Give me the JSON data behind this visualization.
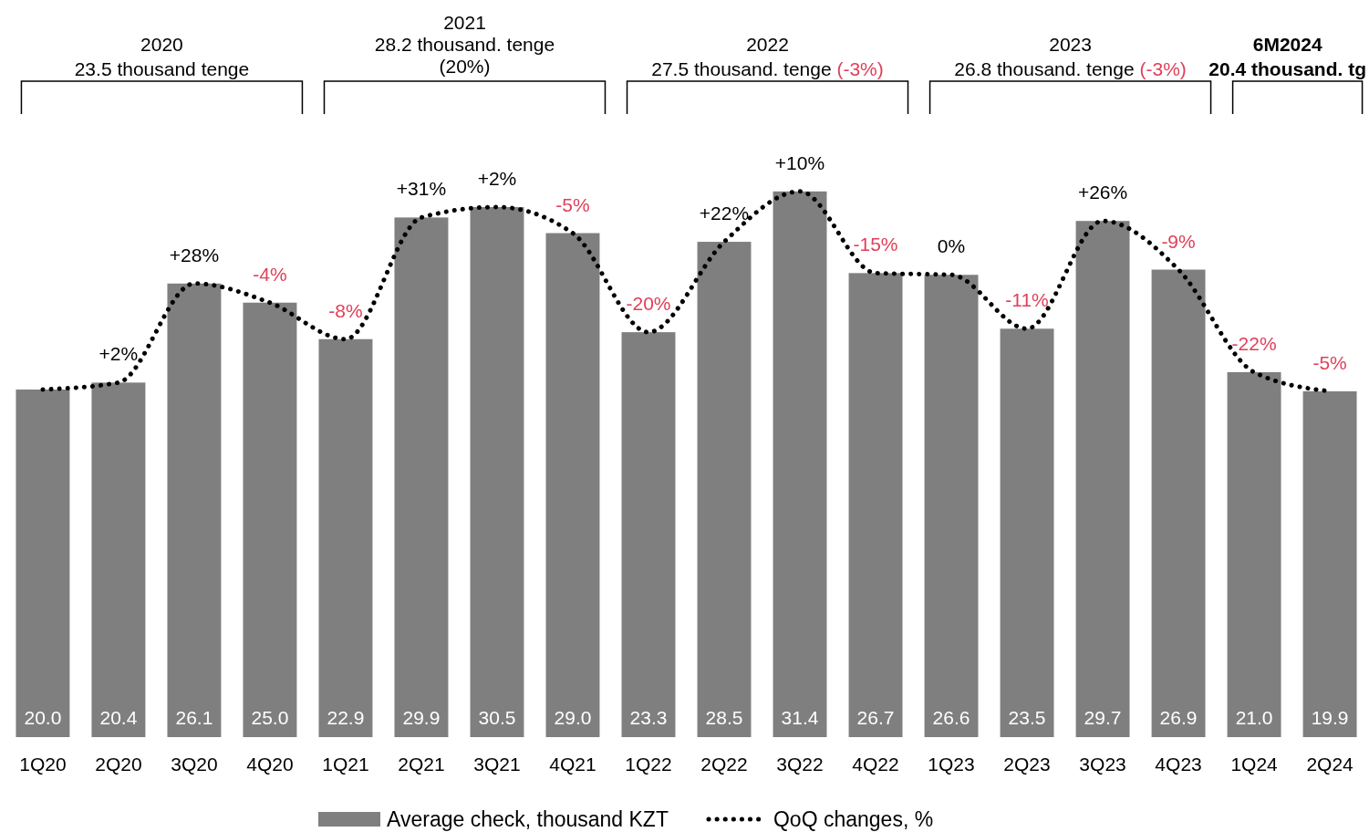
{
  "chart_data": {
    "type": "bar",
    "categories": [
      "1Q20",
      "2Q20",
      "3Q20",
      "4Q20",
      "1Q21",
      "2Q21",
      "3Q21",
      "4Q21",
      "1Q22",
      "2Q22",
      "3Q22",
      "4Q22",
      "1Q23",
      "2Q23",
      "3Q23",
      "4Q23",
      "1Q24",
      "2Q24"
    ],
    "series": [
      {
        "name": "Average check, thousand KZT",
        "color": "#7f7f7f",
        "values": [
          20.0,
          20.4,
          26.1,
          25.0,
          22.9,
          29.9,
          30.5,
          29.0,
          23.3,
          28.5,
          31.4,
          26.7,
          26.6,
          23.5,
          29.7,
          26.9,
          21.0,
          19.9
        ],
        "value_labels": [
          "20.0",
          "20.4",
          "26.1",
          "25.0",
          "22.9",
          "29.9",
          "30.5",
          "29.0",
          "23.3",
          "28.5",
          "31.4",
          "26.7",
          "26.6",
          "23.5",
          "29.7",
          "26.9",
          "21.0",
          "19.9"
        ]
      },
      {
        "name": "QoQ changes, %",
        "type": "line",
        "color": "#000000",
        "line_style": "dotted",
        "marker": "none",
        "values": [
          20.0,
          20.4,
          26.1,
          25.0,
          22.9,
          29.9,
          30.5,
          29.0,
          23.3,
          28.5,
          31.4,
          26.7,
          26.6,
          23.5,
          29.7,
          26.9,
          21.0,
          19.9
        ]
      }
    ],
    "annotations": [
      "2020\n23.5 thousand tenge",
      "2021\n28.2 thousand. tenge\n(20%)",
      "2022\n27.5 thousand. tenge (-3%)",
      "2023\n26.8 thousand. tenge (-3%)",
      "6M2024\n20.4 thousand. tg",
      {
        "text": "+2%",
        "x": "2Q20",
        "y": 20.4
      },
      {
        "text": "+28%",
        "x": "3Q20",
        "y": 26.1
      },
      {
        "text": "-4%",
        "x": "4Q20",
        "y": 25.0
      },
      {
        "text": "-8%",
        "x": "1Q21",
        "y": 22.9
      },
      {
        "text": "+31%",
        "x": "2Q21",
        "y": 29.9
      },
      {
        "text": "+2%",
        "x": "3Q21",
        "y": 30.5
      },
      {
        "text": "-5%",
        "x": "4Q21",
        "y": 29.0
      },
      {
        "text": "-20%",
        "x": "1Q22",
        "y": 23.3
      },
      {
        "text": "+22%",
        "x": "2Q22",
        "y": 28.5
      },
      {
        "text": "+10%",
        "x": "3Q22",
        "y": 31.4
      },
      {
        "text": "-15%",
        "x": "4Q22",
        "y": 26.7
      },
      {
        "text": "0%",
        "x": "1Q23",
        "y": 26.6
      },
      {
        "text": "-11%",
        "x": "2Q23",
        "y": 23.5
      },
      {
        "text": "+26%",
        "x": "3Q23",
        "y": 29.7
      },
      {
        "text": "-9%",
        "x": "4Q23",
        "y": 26.9
      },
      {
        "text": "-22%",
        "x": "1Q24",
        "y": 21.0
      },
      {
        "text": "-5%",
        "x": "2Q24",
        "y": 19.9
      }
    ],
    "legend": "bottom"
  }
}
